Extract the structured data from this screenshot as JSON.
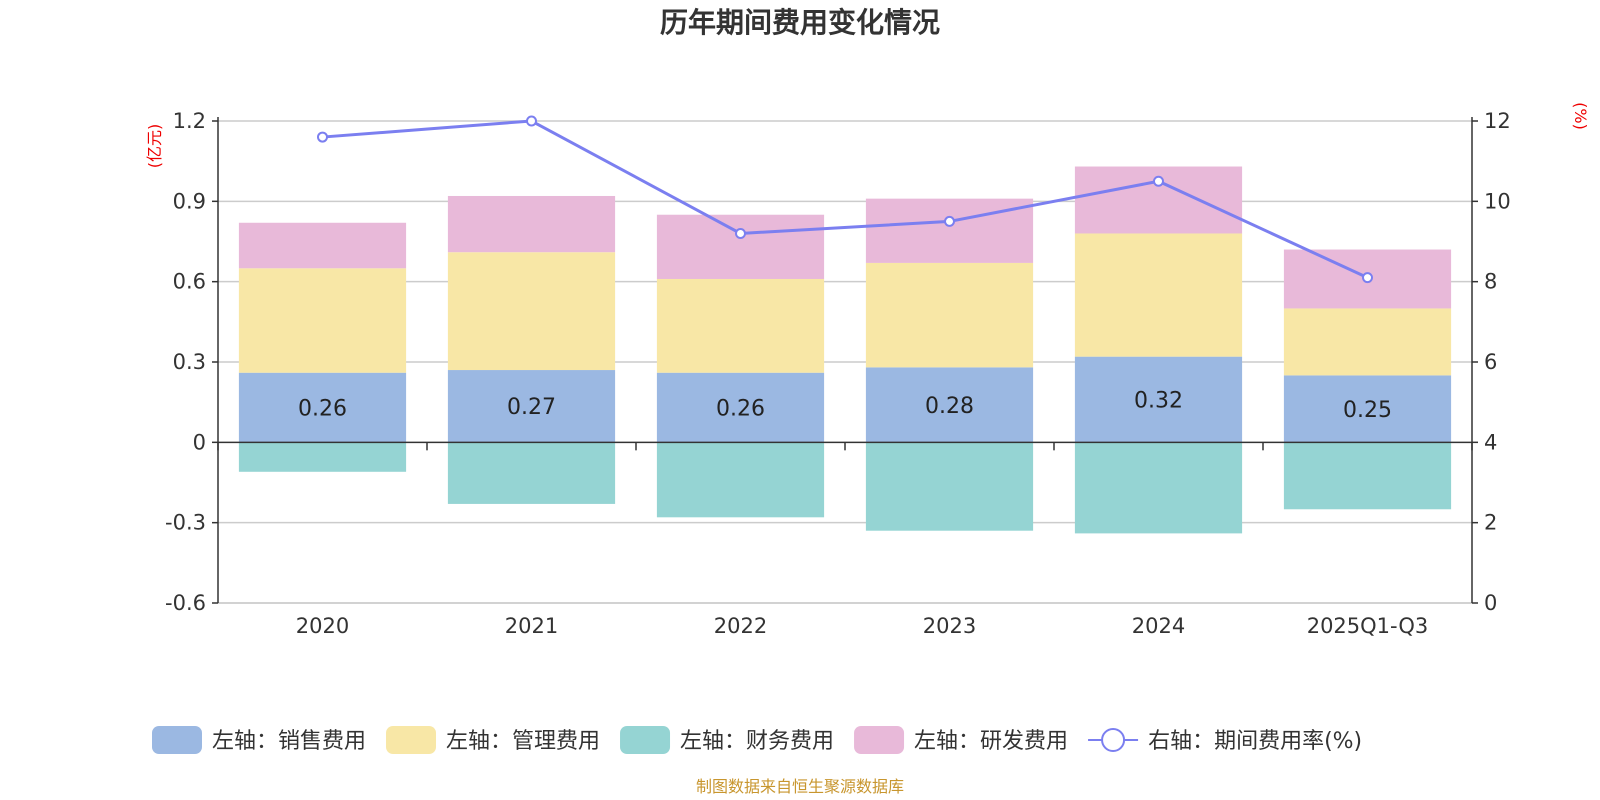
{
  "chart_data": {
    "type": "stacked-bar-line",
    "title": "历年期间费用变化情况",
    "left_unit": "(亿元)",
    "right_unit": "(%)",
    "categories": [
      "2020",
      "2021",
      "2022",
      "2023",
      "2024",
      "2025Q1-Q3"
    ],
    "left_ylim": [
      -0.6,
      1.2
    ],
    "left_ticks": [
      "1.2",
      "0.9",
      "0.6",
      "0.3",
      "0",
      "-0.3",
      "-0.6"
    ],
    "left_tick_values": [
      1.2,
      0.9,
      0.6,
      0.3,
      0,
      -0.3,
      -0.6
    ],
    "right_ylim": [
      0,
      12
    ],
    "right_ticks": [
      "12",
      "10",
      "8",
      "6",
      "4",
      "2",
      "0"
    ],
    "right_tick_values": [
      12,
      10,
      8,
      6,
      4,
      2,
      0
    ],
    "series": [
      {
        "name": "左轴：销售费用",
        "axis": "left",
        "type": "bar",
        "color": "#9bb8e2",
        "values": [
          0.26,
          0.27,
          0.26,
          0.28,
          0.32,
          0.25
        ],
        "labels": [
          "0.26",
          "0.27",
          "0.26",
          "0.28",
          "0.32",
          "0.25"
        ]
      },
      {
        "name": "左轴：管理费用",
        "axis": "left",
        "type": "bar",
        "color": "#f8e7a6",
        "values": [
          0.39,
          0.44,
          0.35,
          0.39,
          0.46,
          0.25
        ]
      },
      {
        "name": "左轴：财务费用",
        "axis": "left",
        "type": "bar",
        "color": "#95d4d3",
        "values": [
          -0.11,
          -0.23,
          -0.28,
          -0.33,
          -0.34,
          -0.25
        ]
      },
      {
        "name": "左轴：研发费用",
        "axis": "left",
        "type": "bar",
        "color": "#e8b9d9",
        "values": [
          0.17,
          0.21,
          0.24,
          0.24,
          0.25,
          0.22
        ]
      },
      {
        "name": "右轴：期间费用率(%)",
        "axis": "right",
        "type": "line",
        "color": "#7b7ff0",
        "values": [
          11.6,
          12.0,
          9.2,
          9.5,
          10.5,
          8.1
        ]
      }
    ],
    "source": "制图数据来自恒生聚源数据库"
  }
}
